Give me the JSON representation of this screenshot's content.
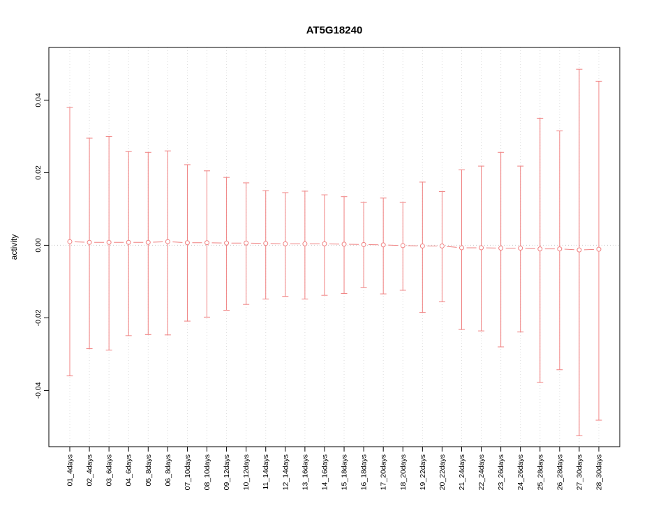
{
  "chart_data": {
    "type": "scatter",
    "subtype": "errorbar",
    "title": "AT5G18240",
    "xlabel": "",
    "ylabel": "activity",
    "legend": "none",
    "grid": "vertical-dotted-per-category, dotted-zero-line",
    "categories": [
      "01_4days",
      "02_4days",
      "03_6days",
      "04_6days",
      "05_8days",
      "06_8days",
      "07_10days",
      "08_10days",
      "09_12days",
      "10_12days",
      "11_14days",
      "12_14days",
      "13_16days",
      "14_16days",
      "15_18days",
      "16_18days",
      "17_20days",
      "18_20days",
      "19_22days",
      "20_22days",
      "21_24days",
      "22_24days",
      "23_26days",
      "24_26days",
      "25_28days",
      "26_28days",
      "27_30days",
      "28_30days"
    ],
    "series": [
      {
        "name": "activity",
        "means": [
          0.001,
          0.0008,
          0.0008,
          0.0008,
          0.0008,
          0.001,
          0.0007,
          0.0007,
          0.0006,
          0.0006,
          0.0005,
          0.0004,
          0.0004,
          0.0004,
          0.0003,
          0.0002,
          0.0001,
          -0.0001,
          -0.0002,
          -0.0002,
          -0.0007,
          -0.0007,
          -0.0008,
          -0.0008,
          -0.001,
          -0.001,
          -0.0013,
          -0.0011
        ],
        "upper": [
          0.038,
          0.0295,
          0.03,
          0.0258,
          0.0256,
          0.026,
          0.0222,
          0.0205,
          0.0187,
          0.0172,
          0.015,
          0.0145,
          0.0149,
          0.0139,
          0.0134,
          0.0118,
          0.013,
          0.0118,
          0.0174,
          0.0148,
          0.0208,
          0.0218,
          0.0256,
          0.0218,
          0.035,
          0.0315,
          0.0485,
          0.0452
        ],
        "lower": [
          -0.036,
          -0.0285,
          -0.0289,
          -0.0249,
          -0.0246,
          -0.0247,
          -0.0209,
          -0.0198,
          -0.0179,
          -0.0163,
          -0.0148,
          -0.0141,
          -0.0148,
          -0.0138,
          -0.0133,
          -0.0116,
          -0.0134,
          -0.0124,
          -0.0185,
          -0.0156,
          -0.0232,
          -0.0236,
          -0.028,
          -0.0239,
          -0.0378,
          -0.0343,
          -0.0525,
          -0.0482
        ]
      }
    ],
    "ylim": [
      -0.0555,
      0.0545
    ],
    "yticks": [
      -0.04,
      -0.02,
      0,
      0.02,
      0.04
    ],
    "ytick_labels": [
      "-0.04",
      "-0.02",
      "0.00",
      "0.02",
      "0.04"
    ],
    "colors": {
      "series": "#f08080",
      "grid": "#dcdcdc",
      "zero_line": "#c8c8c8",
      "box": "#000000"
    }
  }
}
